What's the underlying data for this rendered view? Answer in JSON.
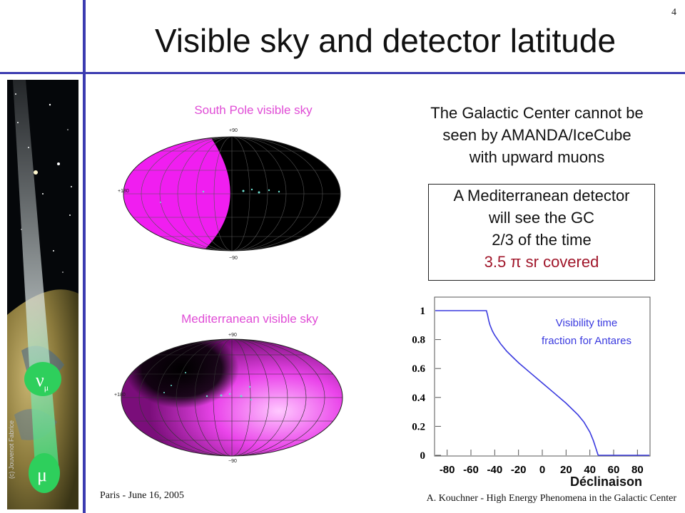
{
  "slide": {
    "number": "4",
    "title": "Visible sky and detector latitude"
  },
  "side_image": {
    "credit": "(c) Jouvenot Fabrice",
    "nu_label": "ν",
    "nu_sub": "μ",
    "mu_label": "μ"
  },
  "maps": {
    "south_pole": {
      "label": "South Pole visible sky",
      "top": "+90",
      "bottom": "−90",
      "left": "+180"
    },
    "mediterranean": {
      "label": "Mediterranean visible sky",
      "top": "+90",
      "bottom": "−90",
      "left": "+180"
    }
  },
  "text": {
    "gc": [
      "The Galactic Center cannot be",
      "seen by AMANDA/IceCube",
      "with upward muons"
    ],
    "box": [
      "A Mediterranean detector",
      "will see the GC",
      "2/3 of the time"
    ],
    "coverage": "3.5 π sr covered"
  },
  "colors": {
    "accent_rule": "#3b3bb0",
    "map_label": "#e04cd6",
    "coverage": "#a0162a",
    "curve": "#3a3adf"
  },
  "chart_data": {
    "type": "line",
    "title": "",
    "annotation": [
      "Visibility time",
      "fraction for Antares"
    ],
    "xlabel": "Déclinaison",
    "ylabel": "",
    "x_ticks": [
      "-80",
      "-60",
      "-40",
      "-20",
      "0",
      "20",
      "40",
      "60",
      "80"
    ],
    "y_ticks": [
      "0",
      "0.2",
      "0.4",
      "0.6",
      "0.8",
      "1"
    ],
    "xlim": [
      -90,
      90
    ],
    "ylim": [
      0,
      1
    ],
    "series": [
      {
        "x": [
          -90,
          -47,
          -46,
          -45,
          -44,
          -42,
          -40,
          -35,
          -30,
          -25,
          -20,
          -10,
          0,
          10,
          20,
          30,
          35,
          40,
          43,
          45,
          47
        ],
        "y": [
          1,
          1,
          0.97,
          0.93,
          0.9,
          0.86,
          0.83,
          0.77,
          0.72,
          0.68,
          0.64,
          0.57,
          0.5,
          0.43,
          0.36,
          0.28,
          0.23,
          0.16,
          0.1,
          0.05,
          0
        ]
      },
      {
        "x": [
          47,
          90
        ],
        "y": [
          0,
          0
        ]
      }
    ]
  },
  "footer": {
    "left": "Paris - June 16, 2005",
    "right": "A. Kouchner - High Energy Phenomena in the Galactic Center"
  }
}
